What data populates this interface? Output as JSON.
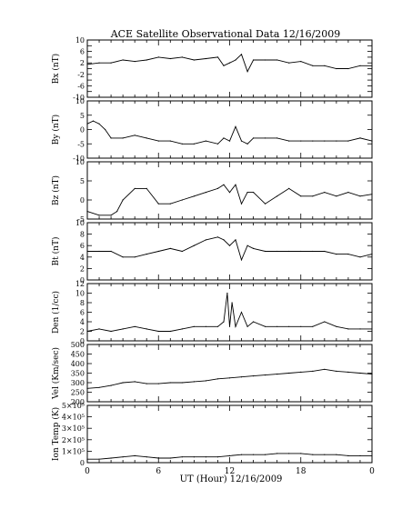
{
  "title": "ACE Satellite Observational Data   12/16/2009",
  "xlabel": "UT (Hour)   12/16/2009",
  "x_tick_labels": [
    "0",
    "6",
    "12",
    "18",
    "0"
  ],
  "chart_data": [
    {
      "type": "line",
      "ylabel": "Bx (nT)",
      "ylim": [
        -10,
        10
      ],
      "tick_values": [
        -10,
        -8,
        -6,
        -4,
        -2,
        0,
        2,
        4,
        6,
        8,
        10
      ],
      "tick_labels": [
        "-10",
        "",
        "-6",
        "",
        "-2",
        "",
        "2",
        "",
        "6",
        "",
        "10"
      ],
      "x": [
        0,
        1,
        2,
        3,
        4,
        5,
        6,
        7,
        8,
        9,
        10,
        11,
        11.5,
        12,
        12.5,
        13,
        13.5,
        14,
        15,
        16,
        17,
        18,
        19,
        20,
        21,
        22,
        23,
        24
      ],
      "values": [
        1.5,
        2,
        2,
        3,
        2.5,
        3,
        4,
        3.5,
        4,
        3,
        3.5,
        4,
        1,
        2,
        3,
        5,
        -1,
        3,
        3,
        3,
        2,
        2.5,
        1,
        1,
        0,
        0,
        1,
        1
      ]
    },
    {
      "type": "line",
      "ylabel": "By (nT)",
      "ylim": [
        -10,
        10
      ],
      "tick_values": [
        -10,
        -5,
        0,
        5,
        10
      ],
      "tick_labels": [
        "-10",
        "-5",
        "0",
        "5",
        "10"
      ],
      "x": [
        0,
        0.5,
        1,
        1.5,
        2,
        3,
        4,
        5,
        6,
        7,
        8,
        9,
        10,
        11,
        11.5,
        12,
        12.5,
        13,
        13.5,
        14,
        15,
        16,
        17,
        18,
        19,
        20,
        21,
        22,
        23,
        24
      ],
      "values": [
        2,
        3,
        2,
        0,
        -3,
        -3,
        -2,
        -3,
        -4,
        -4,
        -5,
        -5,
        -4,
        -5,
        -3,
        -4,
        1,
        -4,
        -5,
        -3,
        -3,
        -3,
        -4,
        -4,
        -4,
        -4,
        -4,
        -4,
        -3,
        -4
      ]
    },
    {
      "type": "line",
      "ylabel": "Bz (nT)",
      "ylim": [
        -5,
        10
      ],
      "tick_values": [
        -5,
        0,
        5,
        10
      ],
      "tick_labels": [
        "-5",
        "0",
        "5",
        "10"
      ],
      "x": [
        0,
        1,
        2,
        2.5,
        3,
        4,
        5,
        6,
        7,
        8,
        9,
        10,
        11,
        11.5,
        12,
        12.5,
        13,
        13.5,
        14,
        15,
        16,
        17,
        18,
        19,
        20,
        21,
        22,
        23,
        24
      ],
      "values": [
        -3,
        -4,
        -4,
        -3,
        0,
        3,
        3,
        -1,
        -1,
        0,
        1,
        2,
        3,
        4,
        2,
        4,
        -1,
        2,
        2,
        -1,
        1,
        3,
        1,
        1,
        2,
        1,
        2,
        1,
        1.5
      ]
    },
    {
      "type": "line",
      "ylabel": "Bt (nT)",
      "ylim": [
        0,
        10
      ],
      "tick_values": [
        0,
        2,
        4,
        6,
        8,
        10
      ],
      "tick_labels": [
        "0",
        "2",
        "4",
        "6",
        "8",
        "10"
      ],
      "x": [
        0,
        1,
        2,
        3,
        4,
        5,
        6,
        7,
        8,
        9,
        10,
        11,
        11.5,
        12,
        12.5,
        13,
        13.5,
        14,
        15,
        16,
        17,
        18,
        19,
        20,
        21,
        22,
        23,
        24
      ],
      "values": [
        5,
        5,
        5,
        4,
        4,
        4.5,
        5,
        5.5,
        5,
        6,
        7,
        7.5,
        7,
        6,
        7,
        3.5,
        6,
        5.5,
        5,
        5,
        5,
        5,
        5,
        5,
        4.5,
        4.5,
        4,
        4.5
      ]
    },
    {
      "type": "line",
      "ylabel": "Den (1/cc)",
      "ylim": [
        0,
        12
      ],
      "tick_values": [
        0,
        2,
        4,
        6,
        8,
        10,
        12
      ],
      "tick_labels": [
        "0",
        "2",
        "4",
        "6",
        "8",
        "10",
        "12"
      ],
      "x": [
        0,
        1,
        2,
        3,
        4,
        5,
        6,
        7,
        8,
        9,
        10,
        11,
        11.5,
        11.8,
        12,
        12.2,
        12.5,
        13,
        13.5,
        14,
        15,
        16,
        17,
        18,
        19,
        20,
        21,
        22,
        23,
        24
      ],
      "values": [
        2,
        2.5,
        2,
        2.5,
        3,
        2.5,
        2,
        2,
        2.5,
        3,
        3,
        3,
        4,
        10,
        3,
        8,
        3,
        6,
        3,
        4,
        3,
        3,
        3,
        3,
        3,
        4,
        3,
        2.5,
        2.5,
        2.5
      ]
    },
    {
      "type": "line",
      "ylabel": "Vel (Km/sec)",
      "ylim": [
        200,
        500
      ],
      "tick_values": [
        200,
        250,
        300,
        350,
        400,
        450,
        500
      ],
      "tick_labels": [
        "200",
        "250",
        "300",
        "350",
        "400",
        "450",
        "500"
      ],
      "x": [
        0,
        1,
        2,
        3,
        4,
        5,
        6,
        7,
        8,
        9,
        10,
        11,
        12,
        13,
        14,
        15,
        16,
        17,
        18,
        19,
        20,
        21,
        22,
        23,
        24
      ],
      "values": [
        270,
        275,
        285,
        300,
        305,
        295,
        295,
        300,
        300,
        305,
        310,
        320,
        325,
        330,
        335,
        340,
        345,
        350,
        355,
        360,
        370,
        360,
        355,
        350,
        345
      ]
    },
    {
      "type": "line",
      "ylabel": "Ion Temp (K)",
      "ylim": [
        0,
        500000
      ],
      "tick_values": [
        0,
        100000,
        200000,
        300000,
        400000,
        500000
      ],
      "tick_labels": [
        "0",
        "1×10⁵",
        "2×10⁵",
        "3×10⁵",
        "4×10⁵",
        "5×10⁵"
      ],
      "x": [
        0,
        1,
        2,
        3,
        4,
        5,
        6,
        7,
        8,
        9,
        10,
        11,
        12,
        13,
        14,
        15,
        16,
        17,
        18,
        19,
        20,
        21,
        22,
        23,
        24
      ],
      "values": [
        30000,
        30000,
        40000,
        50000,
        60000,
        50000,
        40000,
        40000,
        50000,
        50000,
        50000,
        50000,
        60000,
        70000,
        70000,
        70000,
        80000,
        80000,
        80000,
        70000,
        70000,
        70000,
        60000,
        60000,
        60000
      ]
    }
  ]
}
